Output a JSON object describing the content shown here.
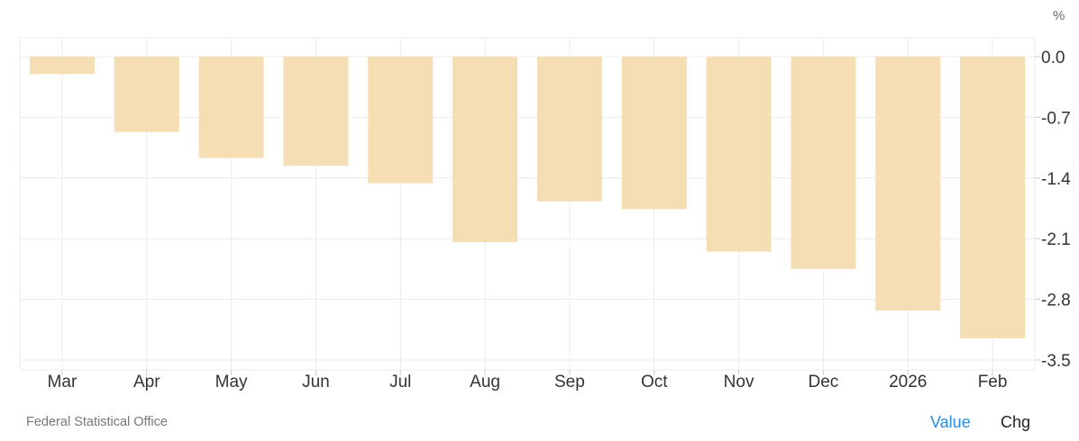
{
  "chart_data": {
    "type": "bar",
    "categories": [
      "Mar",
      "Apr",
      "May",
      "Jun",
      "Jul",
      "Aug",
      "Sep",
      "Oct",
      "Nov",
      "Dec",
      "2026",
      "Feb"
    ],
    "values": [
      -0.2,
      -0.87,
      -1.17,
      -1.26,
      -1.46,
      -2.14,
      -1.67,
      -1.76,
      -2.25,
      -2.45,
      -2.93,
      -3.25
    ],
    "unit": "%",
    "yticks": [
      "0.0",
      "-0.7",
      "-1.4",
      "-2.1",
      "-2.8",
      "-3.5"
    ],
    "ylim": [
      -3.5,
      0.0
    ],
    "bar_color": "#f5deb3",
    "grid": true
  },
  "footer": {
    "source": "Federal Statistical Office",
    "toggle_value": "Value",
    "toggle_chg": "Chg"
  },
  "colors": {
    "accent": "#2d8ee0",
    "grid": "#ececec"
  }
}
